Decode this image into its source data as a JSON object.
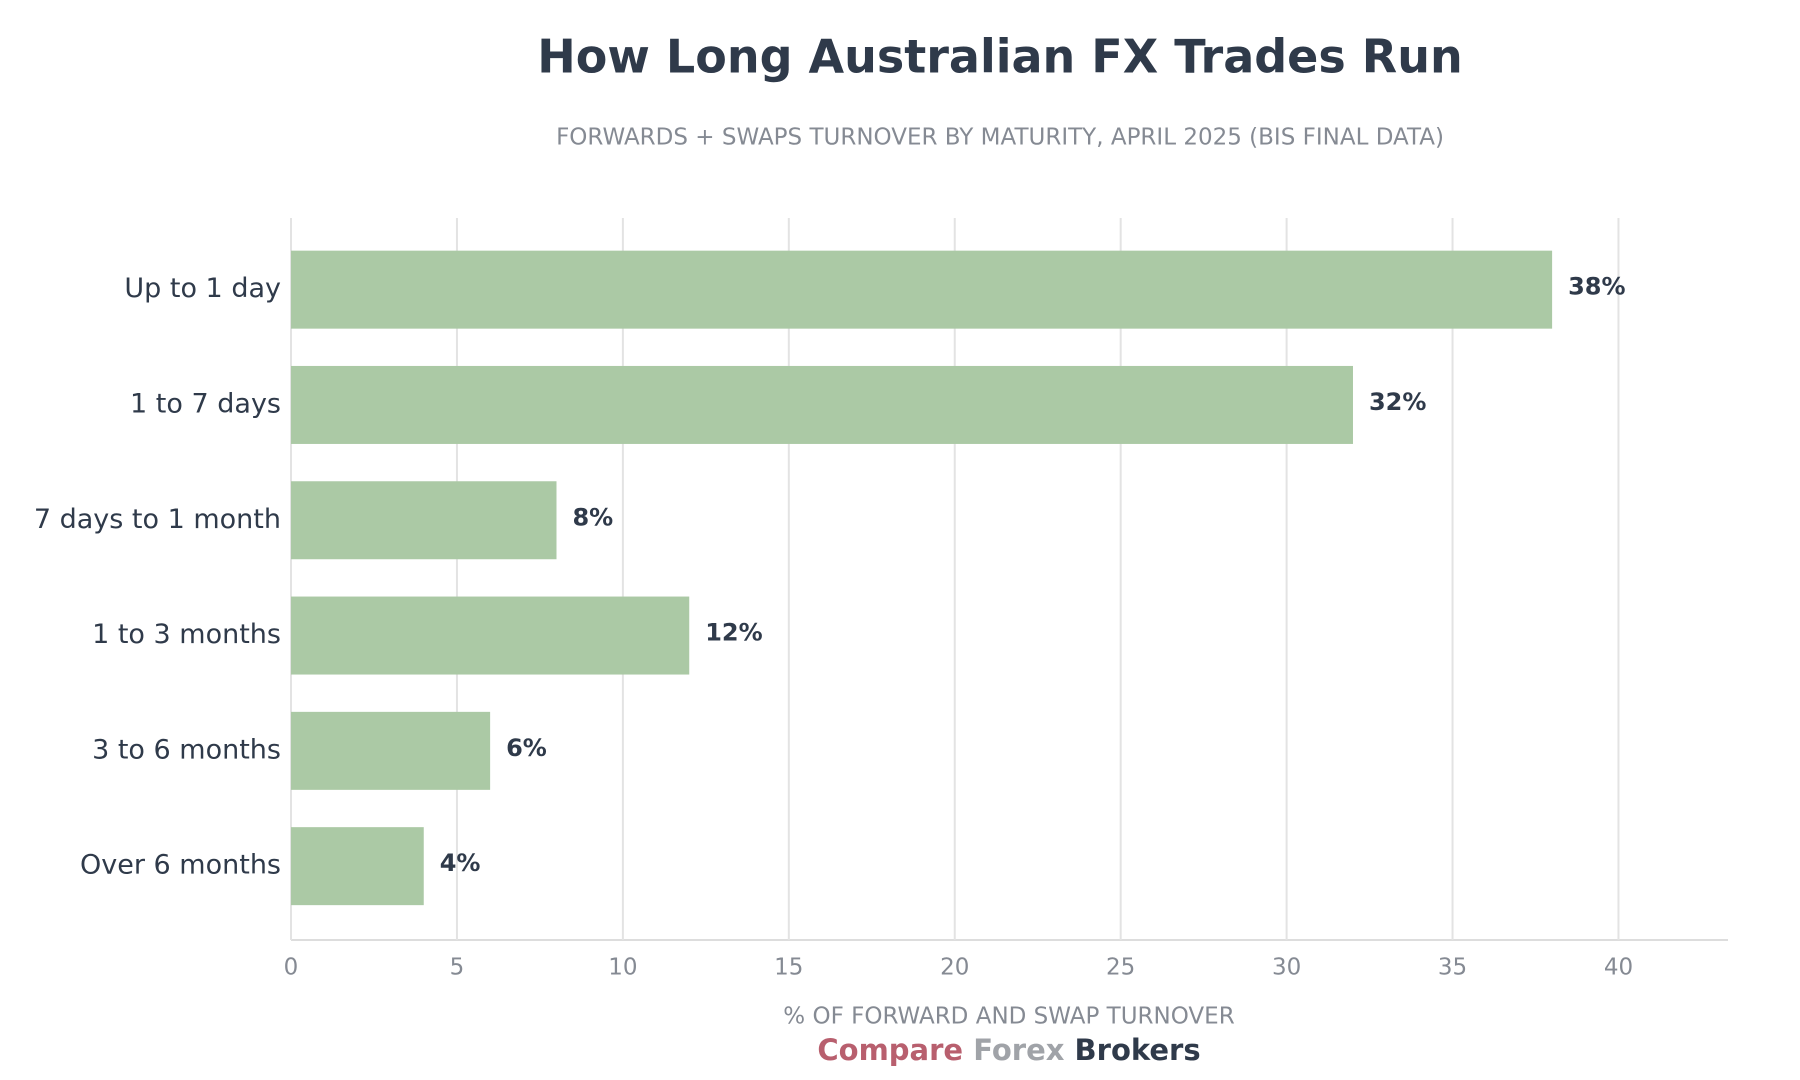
{
  "chart_data": {
    "type": "barh",
    "title": "How Long Australian FX Trades Run",
    "subtitle": "FORWARDS + SWAPS TURNOVER BY MATURITY, APRIL 2025 (BIS FINAL DATA)",
    "x_label": "% OF FORWARD AND SWAP TURNOVER",
    "categories": [
      "Up to 1 day",
      "1 to 7 days",
      "7 days to 1 month",
      "1 to 3 months",
      "3 to 6 months",
      "Over 6 months"
    ],
    "values": [
      38,
      32,
      8,
      12,
      6,
      4
    ],
    "value_labels": [
      "38%",
      "32%",
      "8%",
      "12%",
      "6%",
      "4%"
    ],
    "color": "#abc9a5",
    "xlim": [
      0,
      43.3
    ],
    "xticks": [
      0,
      5,
      10,
      15,
      20,
      25,
      30,
      35,
      40
    ],
    "grid": true
  },
  "brand": [
    "Compare",
    "Forex",
    "Brokers"
  ]
}
